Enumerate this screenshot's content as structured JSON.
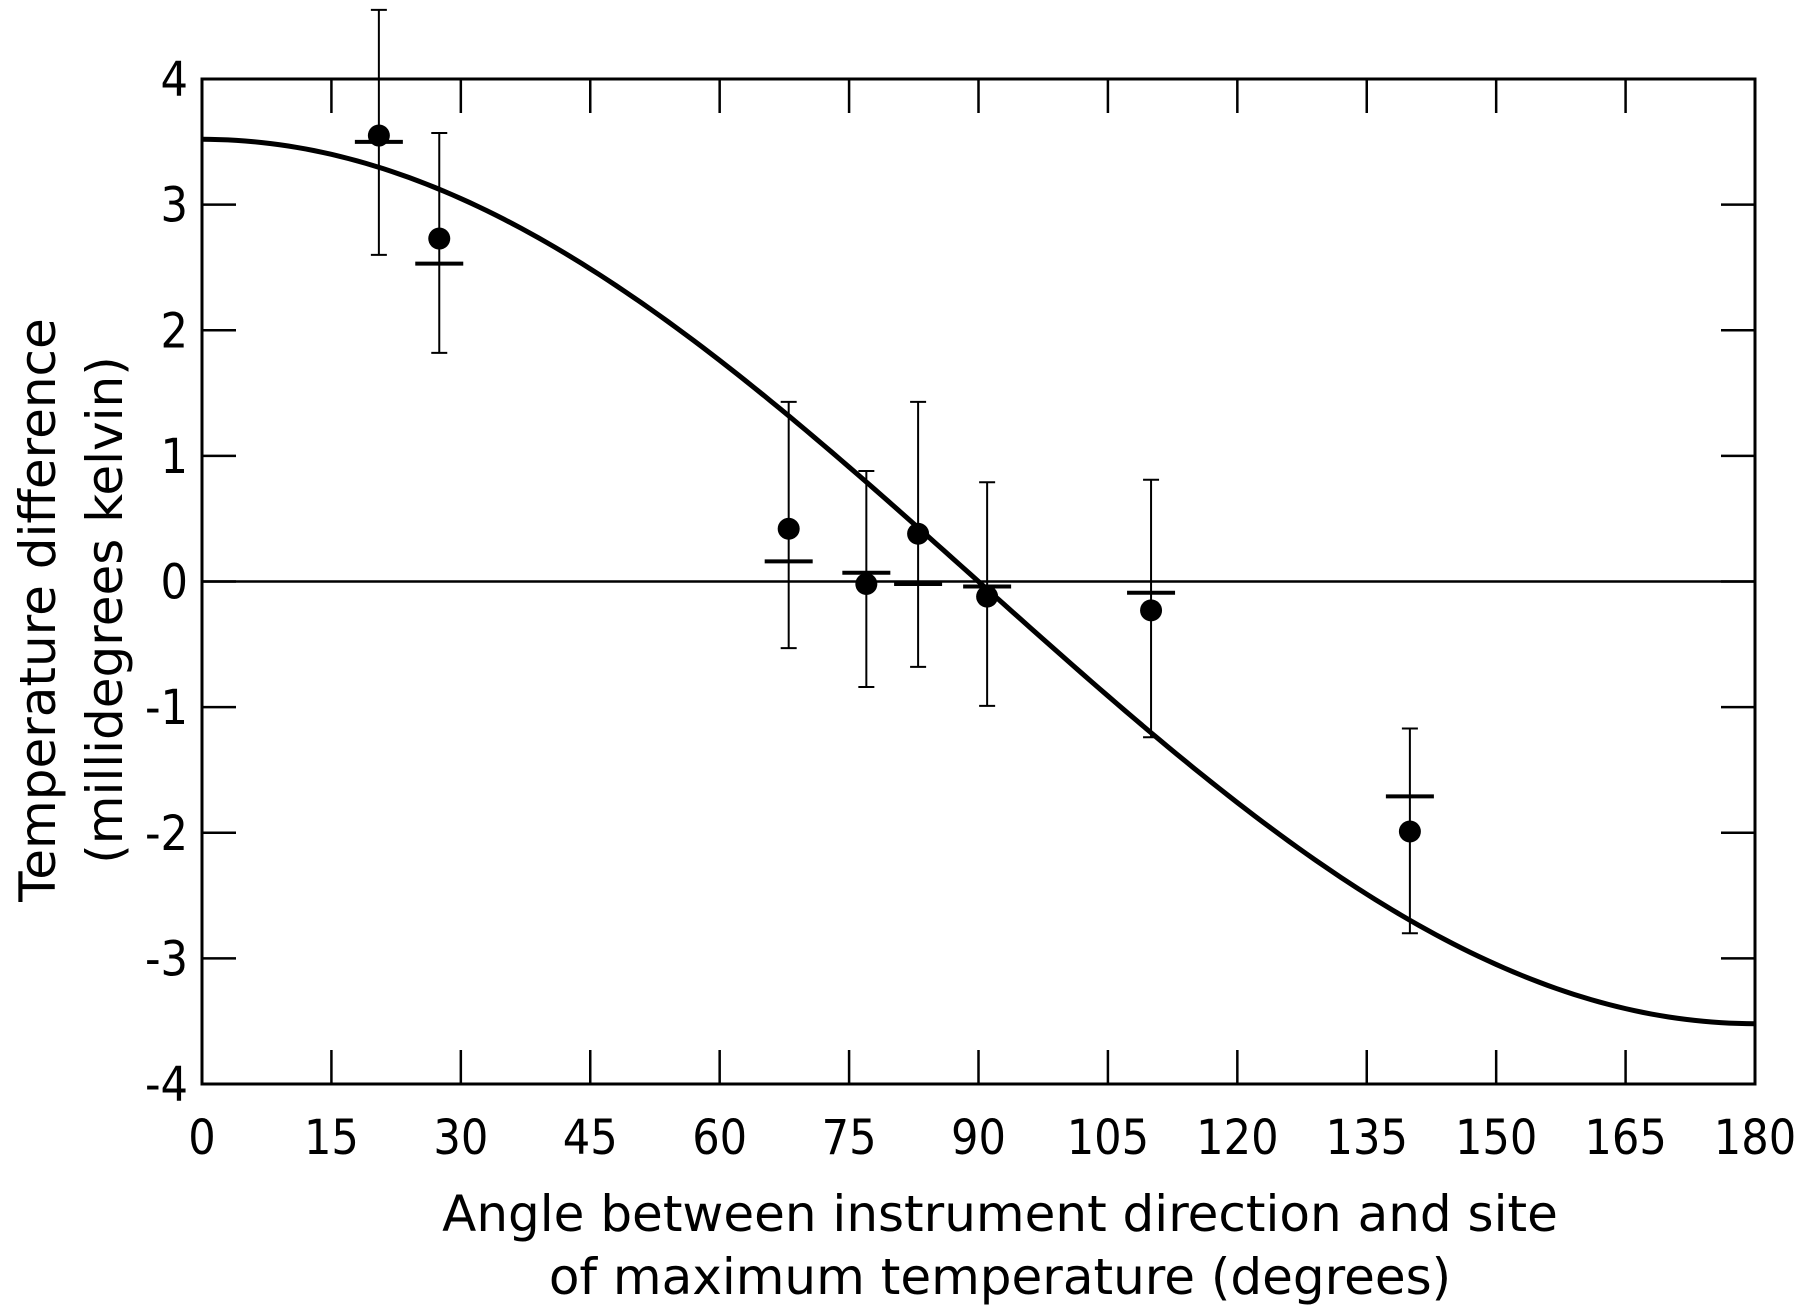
{
  "chart_data": {
    "type": "scatter",
    "xlabel_line1": "Angle between instrument direction and site",
    "xlabel_line2": "of maximum temperature (degrees)",
    "ylabel_line1": "Temperature difference",
    "ylabel_line2": "(millidegrees kelvin)",
    "xlim": [
      0,
      180
    ],
    "ylim": [
      -4,
      4
    ],
    "x_ticks": [
      0,
      15,
      30,
      45,
      60,
      75,
      90,
      105,
      120,
      135,
      150,
      165,
      180
    ],
    "y_ticks": [
      4,
      3,
      2,
      1,
      0,
      -1,
      -2,
      -3,
      -4
    ],
    "x_tick_labels": [
      "0",
      "15",
      "30",
      "45",
      "60",
      "75",
      "90",
      "105",
      "120",
      "135",
      "150",
      "165",
      "180"
    ],
    "y_tick_labels": [
      "4",
      "3",
      "2",
      "1",
      "0",
      "-1",
      "-2",
      "-3",
      "-4"
    ],
    "grid": false,
    "zero_line": true,
    "curve": {
      "type": "cosine",
      "amplitude": 3.52,
      "x_range": [
        0,
        180
      ]
    },
    "points": [
      {
        "x": 20.5,
        "y": 3.55,
        "err_low": 2.6,
        "err_high": 4.55,
        "model": 3.5
      },
      {
        "x": 27.5,
        "y": 2.73,
        "err_low": 1.82,
        "err_high": 3.57,
        "model": 2.53
      },
      {
        "x": 68.0,
        "y": 0.42,
        "err_low": -0.53,
        "err_high": 1.43,
        "model": 0.16
      },
      {
        "x": 77.0,
        "y": -0.02,
        "err_low": -0.84,
        "err_high": 0.88,
        "model": 0.07
      },
      {
        "x": 83.0,
        "y": 0.38,
        "err_low": -0.68,
        "err_high": 1.43,
        "model": -0.02
      },
      {
        "x": 91.0,
        "y": -0.12,
        "err_low": -0.99,
        "err_high": 0.79,
        "model": -0.04
      },
      {
        "x": 110.0,
        "y": -0.23,
        "err_low": -1.24,
        "err_high": 0.81,
        "model": -0.09
      },
      {
        "x": 140.0,
        "y": -1.99,
        "err_low": -2.8,
        "err_high": -1.17,
        "model": -1.71
      }
    ]
  }
}
